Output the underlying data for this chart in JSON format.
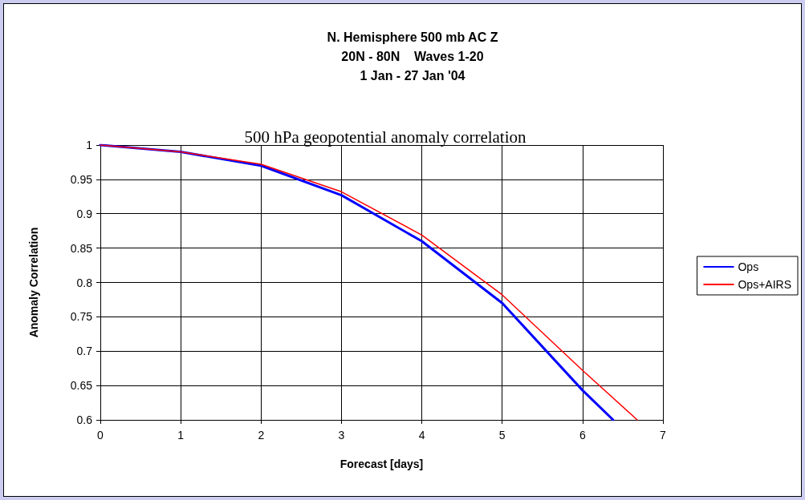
{
  "chart_data": {
    "type": "line",
    "title": "N. Hemisphere 500 mb AC Z\n20N - 80N    Waves 1-20\n1 Jan - 27 Jan '04",
    "subtitle": "500 hPa geopotential anomaly correlation",
    "xlabel": "Forecast [days]",
    "ylabel": "Anomaly Correlation",
    "series": [
      {
        "name": "Ops",
        "color": "#0000ff",
        "x": [
          0,
          1,
          2,
          3,
          4,
          5,
          6,
          6.38
        ],
        "values": [
          1,
          0.99,
          0.97,
          0.927,
          0.86,
          0.77,
          0.643,
          0.6
        ]
      },
      {
        "name": "Ops+AIRS",
        "color": "#ff0000",
        "x": [
          0,
          1,
          2,
          3,
          4,
          5,
          6,
          6.68
        ],
        "values": [
          1,
          0.99,
          0.972,
          0.932,
          0.869,
          0.782,
          0.672,
          0.6
        ]
      }
    ],
    "xlim": [
      0,
      7
    ],
    "xticks": [
      0,
      1,
      2,
      3,
      4,
      5,
      6,
      7
    ],
    "ylim": [
      0.6,
      1
    ],
    "yticks": [
      0.6,
      0.65,
      0.7,
      0.75,
      0.8,
      0.85,
      0.9,
      0.95,
      1
    ],
    "grid": true,
    "legend": "right",
    "marker": "none",
    "line_style": "solid"
  }
}
